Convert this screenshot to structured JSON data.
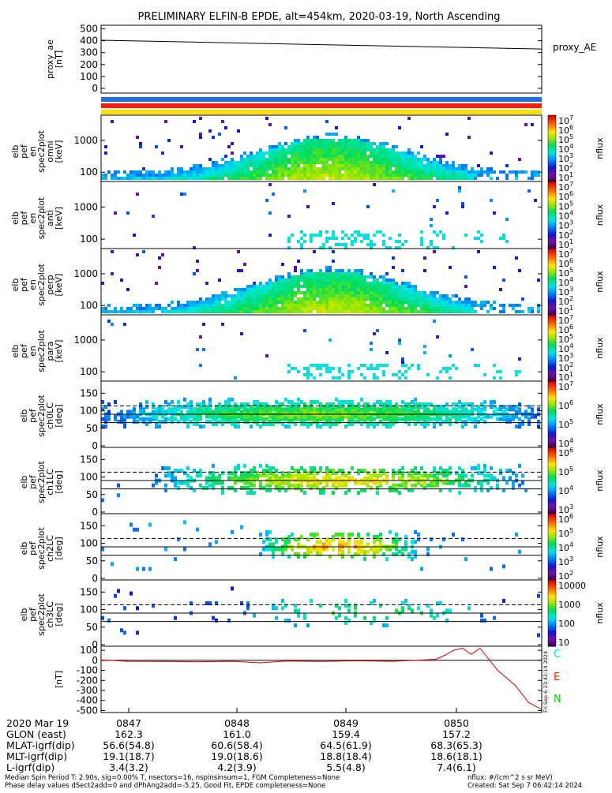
{
  "title": "PRELIMINARY ELFIN-B EPDE, alt=454km, 2020-03-19, North Ascending",
  "colors": {
    "bar_blue": "#1f6fe0",
    "bar_red": "#ff1a0a",
    "bar_yellow": "#ffe000",
    "line_red": "#cc0000",
    "leg_cyan": "#00d8ff",
    "leg_red": "#ff2000",
    "leg_green": "#00d800"
  },
  "chart_data": [
    {
      "type": "line",
      "panel": "proxy_ae",
      "ylabel": [
        "proxy_ae",
        "[nT]"
      ],
      "yticks": [
        "500",
        "400",
        "300",
        "200",
        "100",
        "0"
      ],
      "ylim": [
        -40,
        530
      ],
      "right_label": "proxy_AE",
      "x": [
        "08:46:26",
        "08:50:55"
      ],
      "y": [
        404,
        330
      ]
    },
    {
      "type": "heatmap",
      "panel": "spec_omni",
      "ylabel": [
        "elb",
        "pef",
        "en",
        "spec2plot",
        "omni",
        "[keV]"
      ],
      "yticks": [
        "1000",
        "100"
      ],
      "ylog": true,
      "colorbar": {
        "ticks": [
          "10^7",
          "10^6",
          "10^5",
          "10^4",
          "10^3",
          "10^2",
          "10^1"
        ],
        "label": "nflux"
      }
    },
    {
      "type": "heatmap",
      "panel": "spec_anti",
      "ylabel": [
        "elb",
        "pef",
        "en",
        "spec2plot",
        "anti",
        "[keV]"
      ],
      "yticks": [
        "1000",
        "100"
      ],
      "ylog": true,
      "colorbar": {
        "ticks": [
          "10^7",
          "10^6",
          "10^5",
          "10^4",
          "10^3",
          "10^2",
          "10^1"
        ],
        "label": "nflux"
      }
    },
    {
      "type": "heatmap",
      "panel": "spec_perp",
      "ylabel": [
        "elb",
        "pef",
        "en",
        "spec2plot",
        "perp",
        "[keV]"
      ],
      "yticks": [
        "1000",
        "100"
      ],
      "ylog": true,
      "colorbar": {
        "ticks": [
          "10^7",
          "10^6",
          "10^5",
          "10^4",
          "10^3",
          "10^2",
          "10^1"
        ],
        "label": "nflux"
      }
    },
    {
      "type": "heatmap",
      "panel": "spec_para",
      "ylabel": [
        "elb",
        "pef",
        "en",
        "spec2plot",
        "para",
        "[keV]"
      ],
      "yticks": [
        "1000",
        "100"
      ],
      "ylog": true,
      "colorbar": {
        "ticks": [
          "10^7",
          "10^6",
          "10^5",
          "10^4",
          "10^3",
          "10^2",
          "10^1"
        ],
        "label": "nflux"
      }
    },
    {
      "type": "heatmap",
      "panel": "ch0LC",
      "ylabel": [
        "elb",
        "pef",
        "spec2plot",
        "ch0LC",
        "[deg]"
      ],
      "yticks": [
        "150",
        "100",
        "50",
        "0"
      ],
      "ylim": [
        0,
        180
      ],
      "colorbar": {
        "ticks": [
          "10^7",
          "10^6",
          "10^5",
          "10^4"
        ],
        "label": "nflux"
      }
    },
    {
      "type": "heatmap",
      "panel": "ch1LC",
      "ylabel": [
        "elb",
        "pef",
        "spec2plot",
        "ch1LC",
        "[deg]"
      ],
      "yticks": [
        "150",
        "100",
        "50",
        "0"
      ],
      "ylim": [
        0,
        180
      ],
      "colorbar": {
        "ticks": [
          "10^6",
          "10^5",
          "10^4",
          "10^3"
        ],
        "label": "nflux"
      }
    },
    {
      "type": "heatmap",
      "panel": "ch2LC",
      "ylabel": [
        "elb",
        "pef",
        "spec2plot",
        "ch2LC",
        "[deg]"
      ],
      "yticks": [
        "150",
        "100",
        "50",
        "0"
      ],
      "ylim": [
        0,
        180
      ],
      "colorbar": {
        "ticks": [
          "10^6",
          "10^5",
          "10^4",
          "10^3",
          "10^2"
        ],
        "label": "nflux"
      }
    },
    {
      "type": "heatmap",
      "panel": "ch3LC",
      "ylabel": [
        "elb",
        "pef",
        "spec2plot",
        "ch3LC",
        "[deg]"
      ],
      "yticks": [
        "150",
        "100",
        "50",
        "0"
      ],
      "ylim": [
        0,
        180
      ],
      "colorbar": {
        "ticks": [
          "10000",
          "1000",
          "100",
          "10"
        ],
        "label": "nflux"
      }
    },
    {
      "type": "line",
      "panel": "fgm",
      "ylabel": [
        "[nT]"
      ],
      "yticks": [
        "100",
        "0",
        "-100",
        "-200",
        "-300",
        "-400",
        "-500"
      ],
      "ylim": [
        -520,
        140
      ],
      "legend": [
        "C",
        "E",
        "N"
      ],
      "side_text": "Fri Sep  6 23:42:14 2024",
      "series_x": [
        0,
        0.06,
        0.15,
        0.22,
        0.3,
        0.36,
        0.42,
        0.5,
        0.58,
        0.66,
        0.72,
        0.76,
        0.78,
        0.8,
        0.82,
        0.84,
        0.86,
        0.9,
        0.94,
        0.97,
        1.0
      ],
      "series_y": [
        5,
        -10,
        -12,
        -15,
        -10,
        -25,
        -8,
        -12,
        -5,
        -10,
        0,
        10,
        50,
        100,
        120,
        60,
        120,
        -100,
        -250,
        -420,
        -490
      ]
    }
  ],
  "footer": {
    "rows": [
      {
        "label": "2020 Mar 19",
        "values": [
          "0847",
          "0848",
          "0849",
          "0850"
        ]
      },
      {
        "label": "GLON (east)",
        "values": [
          "162.3",
          "161.0",
          "159.4",
          "157.2"
        ]
      },
      {
        "label": "MLAT-igrf(dip)",
        "values": [
          "56.6(54.8)",
          "60.6(58.4)",
          "64.5(61.9)",
          "68.3(65.3)"
        ]
      },
      {
        "label": "MLT-igrf(dip)",
        "values": [
          "19.1(18.7)",
          "19.0(18.6)",
          "18.8(18.4)",
          "18.6(18.1)"
        ]
      },
      {
        "label": "L-igrf(dip)",
        "values": [
          "3.4(3.2)",
          "4.2(3.9)",
          "5.5(4.8)",
          "7.4(6.1)"
        ]
      }
    ],
    "note1": "Median Spin Period T: 2.90s, sig=0.00% T, nsectors=16, nspinsinsum=1, FGM Completeness=None",
    "note2": "Phase delay values dSect2add=0 and dPhAng2add=-5.25, Good Fit, EPDE completeness=None",
    "units": "nflux: #/(cm^2 s sr MeV)",
    "created": "Created: Sat Sep  7 06:42:14 2024"
  }
}
